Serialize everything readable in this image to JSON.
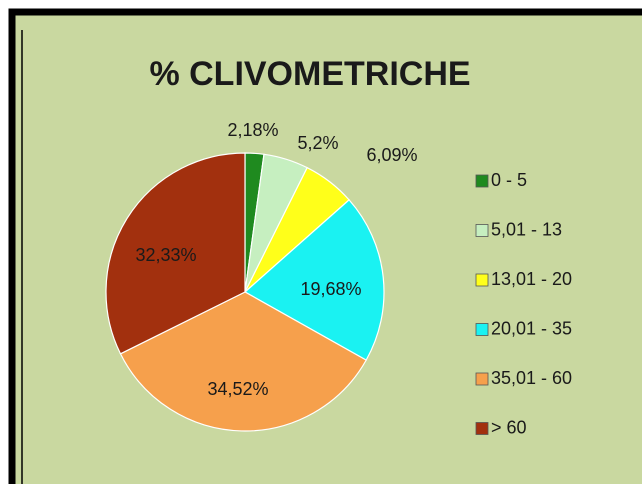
{
  "chart_data": {
    "type": "pie",
    "title": "% CLIVOMETRICHE",
    "categories": [
      "0 - 5",
      "5,01 - 13",
      "13,01 - 20",
      "20,01 - 35",
      "35,01 - 60",
      "> 60"
    ],
    "values": [
      2.18,
      5.2,
      6.09,
      19.68,
      34.52,
      32.33
    ],
    "value_labels": [
      "2,18%",
      "5,2%",
      "6,09%",
      "19,68%",
      "34,52%",
      "32,33%"
    ],
    "colors": [
      "#1f8a1f",
      "#c6efc0",
      "#ffff1a",
      "#1af2f2",
      "#f6a04c",
      "#a2300e"
    ],
    "legend": "right"
  }
}
